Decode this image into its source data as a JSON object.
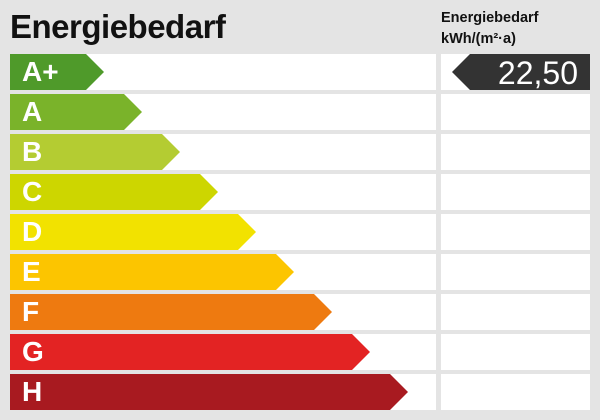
{
  "chart_data": {
    "type": "bar",
    "title": "Energiebedarf",
    "value_header": "Energiebedarf",
    "value_unit": "kWh/(m²·a)",
    "categories": [
      "A+",
      "A",
      "B",
      "C",
      "D",
      "E",
      "F",
      "G",
      "H"
    ],
    "colors": [
      "#4f9a2a",
      "#7ab32a",
      "#b4cc32",
      "#cdd600",
      "#f2e200",
      "#fcc500",
      "#ee7a10",
      "#e32323",
      "#a81a20"
    ],
    "value": "22,50",
    "indicated_class": "A+"
  }
}
